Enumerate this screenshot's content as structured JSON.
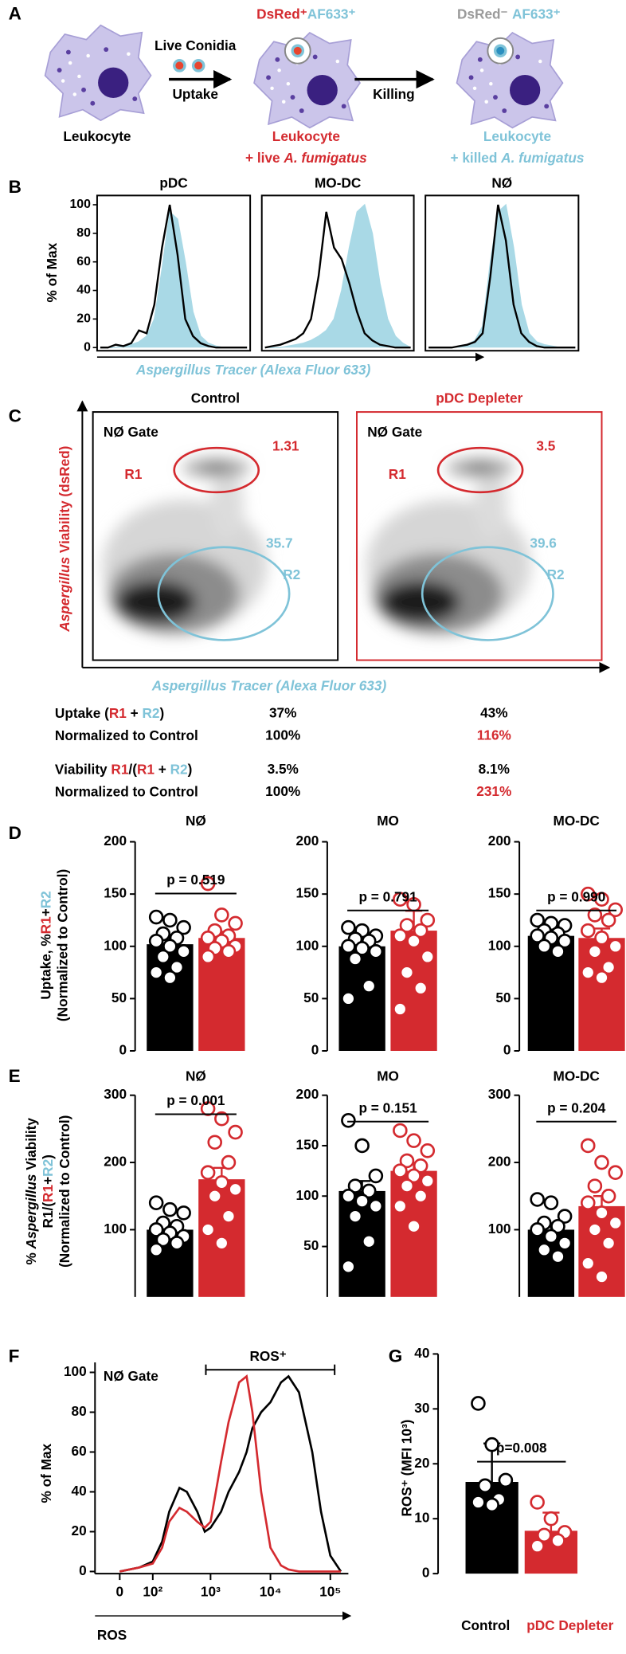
{
  "panel_labels": [
    "A",
    "B",
    "C",
    "D",
    "E",
    "F",
    "G"
  ],
  "schematic": {
    "state_uptake": [
      "DsRed⁺",
      "AF633⁺"
    ],
    "state_killed": [
      "DsRed⁻",
      "AF633⁺"
    ],
    "arrow1_top": "Live Conidia",
    "arrow1_bottom": "Uptake",
    "arrow2": "Killing",
    "cell1": "Leukocyte",
    "cell2": {
      "title": "Leukocyte",
      "caption": [
        "+ live ",
        "A. fumigatus"
      ]
    },
    "cell3": {
      "title": "Leukocyte",
      "caption": [
        "+ killed ",
        "A. fumigatus"
      ]
    }
  },
  "flow_plots": {
    "ylabel": [
      "Aspergillus",
      " Viability (dsRed)"
    ],
    "xlabel": "Aspergillus Tracer (Alexa Fluor 633)",
    "panels": [
      {
        "title": "Control",
        "gate": "NØ Gate",
        "r1": "R1",
        "r1_value": 1.31,
        "r2": "R2",
        "r2_value": 35.7
      },
      {
        "title": "pDC Depleter",
        "gate": "NØ Gate",
        "r1": "R1",
        "r1_value": 3.5,
        "r2": "R2",
        "r2_value": 39.6
      }
    ]
  },
  "summary_table": {
    "rows": [
      {
        "label": [
          "Uptake (",
          "R1",
          " + ",
          "R2",
          ")"
        ],
        "control": "37%",
        "depleter": "43%"
      },
      {
        "label": [
          "Normalized to Control"
        ],
        "control": "100%",
        "depleter": "116%"
      },
      {
        "label": [
          "Viability ",
          "R1",
          "/(",
          "R1",
          " + ",
          "R2",
          ")"
        ],
        "control": "3.5%",
        "depleter": "8.1%"
      },
      {
        "label": [
          "Normalized to Control"
        ],
        "control": "100%",
        "depleter": "231%"
      }
    ]
  },
  "chart_data": [
    {
      "type": "area",
      "title": "pDC",
      "ylim": [
        0,
        105
      ],
      "yticks": [
        0,
        20,
        40,
        60,
        80,
        100
      ],
      "ylabel": "% of Max",
      "xlabel": "Aspergillus Tracer (Alexa Fluor 633)",
      "series": [
        {
          "color": "#a9d9e6",
          "values": [
            0,
            0,
            0,
            1,
            2,
            4,
            8,
            20,
            55,
            95,
            90,
            60,
            25,
            8,
            3,
            1,
            0,
            0,
            0,
            0
          ]
        },
        {
          "color": "#000000",
          "values": [
            0,
            0,
            2,
            1,
            3,
            12,
            10,
            30,
            70,
            100,
            65,
            20,
            8,
            3,
            1,
            0,
            0,
            0,
            0,
            0
          ]
        }
      ]
    },
    {
      "type": "area",
      "title": "MO-DC",
      "ylim": [
        0,
        105
      ],
      "series": [
        {
          "color": "#a9d9e6",
          "values": [
            0,
            0,
            0,
            1,
            2,
            3,
            5,
            8,
            12,
            20,
            40,
            70,
            95,
            100,
            80,
            45,
            20,
            8,
            3,
            0
          ]
        },
        {
          "color": "#000000",
          "values": [
            0,
            1,
            2,
            4,
            6,
            10,
            20,
            50,
            95,
            70,
            62,
            45,
            25,
            10,
            5,
            2,
            1,
            0,
            0,
            0
          ]
        }
      ]
    },
    {
      "type": "area",
      "title": "NØ",
      "ylim": [
        0,
        105
      ],
      "series": [
        {
          "color": "#a9d9e6",
          "values": [
            0,
            0,
            0,
            0,
            1,
            2,
            5,
            15,
            60,
            95,
            100,
            70,
            30,
            10,
            4,
            2,
            1,
            0,
            0,
            0
          ]
        },
        {
          "color": "#000000",
          "values": [
            0,
            0,
            0,
            0,
            1,
            2,
            4,
            10,
            50,
            100,
            75,
            30,
            10,
            4,
            1,
            0,
            0,
            0,
            0,
            0
          ]
        }
      ]
    },
    {
      "type": "bar-dot",
      "title": "NØ",
      "annotation": "p = 0.519",
      "ylim": [
        0,
        200
      ],
      "yticks": [
        0,
        50,
        100,
        150,
        200
      ],
      "ylabel": [
        [
          "Uptake, %",
          "R1",
          "+",
          "R2"
        ],
        [
          "(Normalized to Control)"
        ]
      ],
      "bars": [
        {
          "color": "#000000",
          "value": 102,
          "error": 6,
          "points": [
            128,
            125,
            118,
            112,
            108,
            105,
            100,
            95,
            90,
            80,
            75,
            70
          ]
        },
        {
          "color": "#d42a2f",
          "value": 108,
          "error": 6,
          "points": [
            160,
            130,
            122,
            115,
            110,
            108,
            105,
            100,
            98,
            95,
            90
          ]
        }
      ]
    },
    {
      "type": "bar-dot",
      "title": "MO",
      "annotation": "p = 0.791",
      "ylim": [
        0,
        200
      ],
      "yticks": [
        0,
        50,
        100,
        150,
        200
      ],
      "bars": [
        {
          "color": "#000000",
          "value": 100,
          "error": 8,
          "points": [
            118,
            115,
            110,
            107,
            105,
            100,
            98,
            95,
            88,
            62,
            50
          ]
        },
        {
          "color": "#d42a2f",
          "value": 115,
          "error": 19,
          "points": [
            145,
            140,
            125,
            120,
            115,
            110,
            105,
            90,
            75,
            60,
            40
          ]
        }
      ]
    },
    {
      "type": "bar-dot",
      "title": "MO-DC",
      "annotation": "p = 0.990",
      "ylim": [
        0,
        200
      ],
      "yticks": [
        0,
        50,
        100,
        150,
        200
      ],
      "bars": [
        {
          "color": "#000000",
          "value": 110,
          "error": 4,
          "points": [
            125,
            122,
            120,
            115,
            112,
            110,
            108,
            105,
            100,
            95
          ]
        },
        {
          "color": "#d42a2f",
          "value": 108,
          "error": 9,
          "points": [
            150,
            145,
            135,
            130,
            125,
            115,
            108,
            100,
            95,
            80,
            75,
            70
          ]
        }
      ]
    },
    {
      "type": "bar-dot",
      "title": "NØ",
      "annotation": "p = 0.001",
      "ylim": [
        0,
        300
      ],
      "yticks": [
        100,
        200,
        300
      ],
      "ylabel": [
        [
          "% ",
          "Aspergillus",
          " Viability"
        ],
        [
          "R1/(",
          "R1",
          "+",
          "R2",
          ")"
        ],
        [
          "(Normalized to Control)"
        ]
      ],
      "bars": [
        {
          "color": "#000000",
          "value": 100,
          "error": 7,
          "points": [
            140,
            130,
            125,
            110,
            105,
            100,
            95,
            90,
            85,
            80,
            70
          ]
        },
        {
          "color": "#d42a2f",
          "value": 175,
          "error": 17,
          "points": [
            280,
            265,
            245,
            230,
            200,
            185,
            170,
            160,
            150,
            120,
            100,
            80
          ]
        }
      ]
    },
    {
      "type": "bar-dot",
      "title": "MO",
      "annotation": "p = 0.151",
      "ylim": [
        0,
        200
      ],
      "yticks": [
        50,
        100,
        150,
        200
      ],
      "bars": [
        {
          "color": "#000000",
          "value": 105,
          "error": 10,
          "points": [
            175,
            150,
            120,
            110,
            105,
            100,
            95,
            90,
            80,
            55,
            30
          ]
        },
        {
          "color": "#d42a2f",
          "value": 125,
          "error": 8,
          "points": [
            165,
            155,
            145,
            135,
            130,
            125,
            120,
            115,
            110,
            100,
            90,
            70
          ]
        }
      ]
    },
    {
      "type": "bar-dot",
      "title": "MO-DC",
      "annotation": "p = 0.204",
      "ylim": [
        0,
        300
      ],
      "yticks": [
        100,
        200,
        300
      ],
      "bars": [
        {
          "color": "#000000",
          "value": 100,
          "error": 9,
          "points": [
            145,
            140,
            120,
            110,
            105,
            100,
            90,
            80,
            70,
            60
          ]
        },
        {
          "color": "#d42a2f",
          "value": 135,
          "error": 15,
          "points": [
            225,
            200,
            185,
            165,
            150,
            140,
            125,
            110,
            100,
            80,
            50,
            30
          ]
        }
      ]
    },
    {
      "type": "line",
      "gate_label": "NØ Gate",
      "gate_name": "ROS⁺",
      "ylabel": "% of Max",
      "xlabel": "ROS",
      "xscale": "biexponential",
      "xlim": [
        -50,
        200000
      ],
      "xticks": [
        0,
        {
          "value": 100,
          "label": "10²"
        },
        {
          "value": 1000,
          "label": "10³"
        },
        {
          "value": 10000,
          "label": "10⁴"
        },
        {
          "value": 100000,
          "label": "10⁵"
        }
      ],
      "ylim": [
        0,
        105
      ],
      "yticks": [
        0,
        20,
        40,
        60,
        80,
        100
      ],
      "x": [
        0,
        50,
        100,
        150,
        200,
        300,
        400,
        600,
        800,
        1000,
        1500,
        2000,
        3000,
        4000,
        5000,
        7000,
        10000,
        15000,
        20000,
        30000,
        50000,
        70000,
        100000,
        150000
      ],
      "series": [
        {
          "color": "#000000",
          "values": [
            0,
            2,
            5,
            15,
            30,
            42,
            40,
            30,
            20,
            22,
            30,
            40,
            50,
            60,
            72,
            80,
            85,
            95,
            98,
            90,
            60,
            30,
            8,
            0
          ]
        },
        {
          "color": "#d42a2f",
          "values": [
            0,
            2,
            4,
            12,
            25,
            32,
            30,
            25,
            22,
            25,
            55,
            75,
            95,
            98,
            80,
            40,
            12,
            3,
            1,
            0,
            0,
            0,
            0,
            0
          ]
        }
      ]
    },
    {
      "type": "bar-dot",
      "annotation": "p=0.008",
      "ylim": [
        0,
        40
      ],
      "yticks": [
        0,
        10,
        20,
        30,
        40
      ],
      "ylabel": [
        [
          "ROS⁺ (MFI 10³)"
        ]
      ],
      "categories": [
        "Control",
        "pDC Depleter"
      ],
      "bars": [
        {
          "color": "#000000",
          "value": 16.7,
          "error": 7,
          "points": [
            31,
            23.5,
            17,
            16,
            13.5,
            13,
            12.5
          ]
        },
        {
          "color": "#d42a2f",
          "value": 7.8,
          "error": 3.3,
          "points": [
            13,
            10,
            7.5,
            7,
            6,
            5
          ]
        }
      ]
    }
  ]
}
